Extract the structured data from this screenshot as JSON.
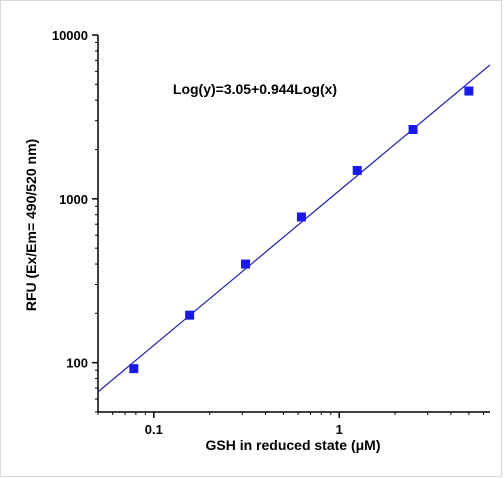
{
  "chart_data": {
    "type": "scatter",
    "title": "",
    "xlabel": "GSH in reduced state (μM)",
    "ylabel": "RFU (Ex/Em= 490/520 nm)",
    "x_scale": "log",
    "y_scale": "log",
    "xlim": [
      0.05,
      6.5
    ],
    "ylim": [
      50,
      10000
    ],
    "x_ticks": [
      {
        "value": 0.1,
        "label": "0.1"
      },
      {
        "value": 1,
        "label": "1"
      }
    ],
    "y_ticks": [
      {
        "value": 100,
        "label": "100"
      },
      {
        "value": 1000,
        "label": "1000"
      },
      {
        "value": 10000,
        "label": "10000"
      }
    ],
    "grid": false,
    "annotation": "Log(y)=3.05+0.944Log(x)",
    "fit_line": {
      "intercept": 3.05,
      "slope": 0.944,
      "x_range": [
        0.05,
        6.5
      ],
      "color": "#2b2bb5"
    },
    "series": [
      {
        "color": "#1a1ae6",
        "marker": "square",
        "x": [
          0.078,
          0.156,
          0.3125,
          0.625,
          1.25,
          2.5,
          5.0
        ],
        "y": [
          92,
          195,
          400,
          775,
          1490,
          2650,
          4550
        ]
      }
    ]
  }
}
